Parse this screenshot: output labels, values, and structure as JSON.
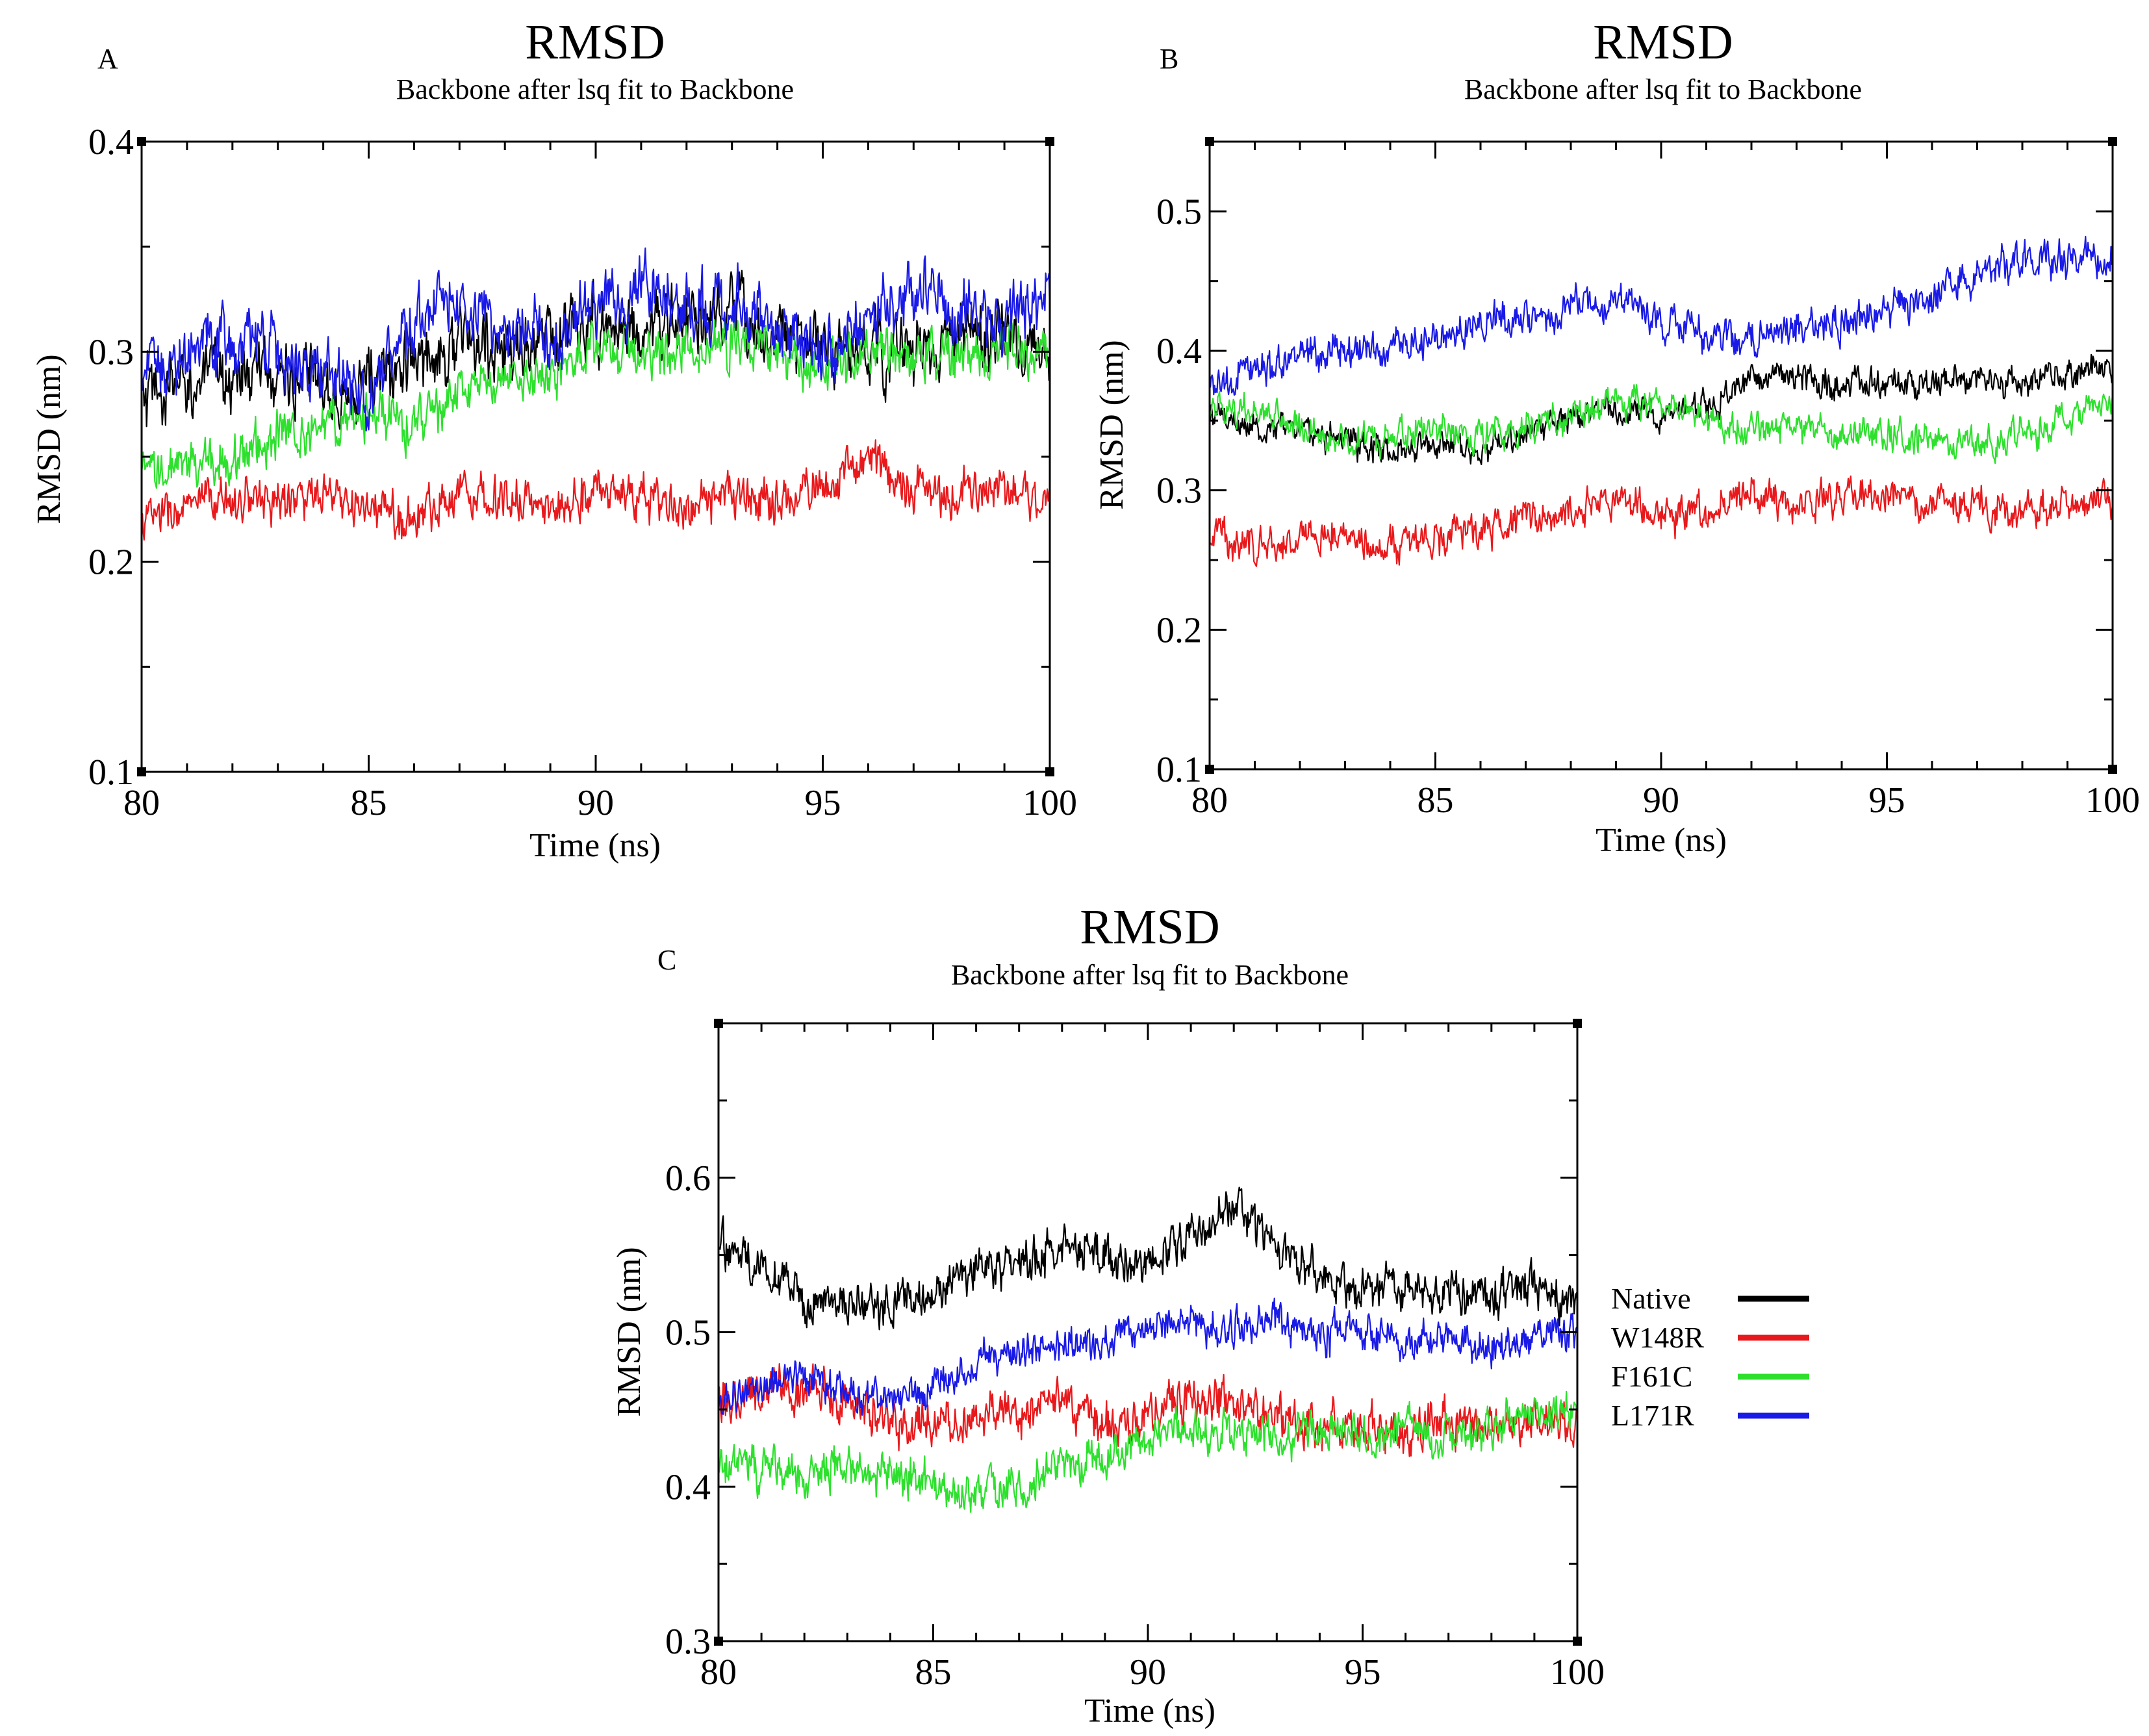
{
  "figure_kind": "GROMACS backbone RMSD plots (xmgrace style), three panels",
  "legend": [
    {
      "key": "native",
      "label": "Native",
      "color": "#000000"
    },
    {
      "key": "w148r",
      "label": "W148R",
      "color": "#e8191c"
    },
    {
      "key": "f161c",
      "label": "F161C",
      "color": "#2ee02e"
    },
    {
      "key": "l171r",
      "label": "L171R",
      "color": "#1a1ae6"
    }
  ],
  "chart_data": [
    {
      "panel": "A",
      "type": "line",
      "title": "RMSD",
      "subtitle": "Backbone after lsq fit to Backbone",
      "xlabel": "Time (ns)",
      "ylabel": "RMSD (nm)",
      "xlim": [
        80,
        100
      ],
      "ylim": [
        0.1,
        0.4
      ],
      "xticks": [
        80,
        85,
        90,
        95,
        100
      ],
      "yticks": [
        0.1,
        0.2,
        0.3,
        0.4
      ],
      "xtick_labels": [
        "80",
        "85",
        "90",
        "95",
        "100"
      ],
      "ytick_labels": [
        "0.1",
        "0.2",
        "0.3",
        "0.4"
      ],
      "x": [
        80,
        81,
        82,
        83,
        84,
        85,
        86,
        87,
        88,
        89,
        90,
        91,
        92,
        93,
        94,
        95,
        96,
        97,
        98,
        99,
        100
      ],
      "series": [
        {
          "name": "Native",
          "color": "#000000",
          "noise": 0.014,
          "values": [
            0.275,
            0.285,
            0.29,
            0.29,
            0.285,
            0.285,
            0.295,
            0.305,
            0.3,
            0.305,
            0.315,
            0.31,
            0.315,
            0.315,
            0.31,
            0.3,
            0.3,
            0.3,
            0.305,
            0.31,
            0.29
          ]
        },
        {
          "name": "W148R",
          "color": "#e8191c",
          "noise": 0.009,
          "values": [
            0.22,
            0.225,
            0.23,
            0.23,
            0.23,
            0.225,
            0.22,
            0.235,
            0.23,
            0.225,
            0.235,
            0.23,
            0.225,
            0.23,
            0.23,
            0.235,
            0.25,
            0.235,
            0.23,
            0.235,
            0.23
          ]
        },
        {
          "name": "F161C",
          "color": "#2ee02e",
          "noise": 0.01,
          "values": [
            0.24,
            0.245,
            0.25,
            0.26,
            0.265,
            0.27,
            0.265,
            0.28,
            0.285,
            0.29,
            0.3,
            0.3,
            0.3,
            0.305,
            0.3,
            0.295,
            0.3,
            0.3,
            0.295,
            0.3,
            0.3
          ]
        },
        {
          "name": "L171R",
          "color": "#1a1ae6",
          "noise": 0.013,
          "values": [
            0.29,
            0.3,
            0.305,
            0.3,
            0.29,
            0.28,
            0.315,
            0.325,
            0.31,
            0.31,
            0.32,
            0.33,
            0.325,
            0.32,
            0.315,
            0.3,
            0.32,
            0.33,
            0.32,
            0.315,
            0.33
          ]
        }
      ]
    },
    {
      "panel": "B",
      "type": "line",
      "title": "RMSD",
      "subtitle": "Backbone after lsq fit to Backbone",
      "xlabel": "Time (ns)",
      "ylabel": "RMSD (nm)",
      "xlim": [
        80,
        100
      ],
      "ylim": [
        0.1,
        0.55
      ],
      "xticks": [
        80,
        85,
        90,
        95,
        100
      ],
      "yticks": [
        0.1,
        0.2,
        0.3,
        0.4,
        0.5
      ],
      "xtick_labels": [
        "80",
        "85",
        "90",
        "95",
        "100"
      ],
      "ytick_labels": [
        "0.1",
        "0.2",
        "0.3",
        "0.4",
        "0.5"
      ],
      "x": [
        80,
        81,
        82,
        83,
        84,
        85,
        86,
        87,
        88,
        89,
        90,
        91,
        92,
        93,
        94,
        95,
        96,
        97,
        98,
        99,
        100
      ],
      "series": [
        {
          "name": "Native",
          "color": "#000000",
          "noise": 0.009,
          "values": [
            0.355,
            0.345,
            0.345,
            0.335,
            0.33,
            0.335,
            0.33,
            0.34,
            0.355,
            0.36,
            0.355,
            0.36,
            0.38,
            0.385,
            0.375,
            0.375,
            0.38,
            0.38,
            0.38,
            0.385,
            0.39
          ]
        },
        {
          "name": "W148R",
          "color": "#e8191c",
          "noise": 0.011,
          "values": [
            0.27,
            0.26,
            0.265,
            0.27,
            0.26,
            0.265,
            0.27,
            0.28,
            0.285,
            0.295,
            0.285,
            0.285,
            0.3,
            0.29,
            0.295,
            0.295,
            0.29,
            0.29,
            0.285,
            0.29,
            0.295
          ]
        },
        {
          "name": "F161C",
          "color": "#2ee02e",
          "noise": 0.01,
          "values": [
            0.36,
            0.355,
            0.345,
            0.335,
            0.34,
            0.345,
            0.34,
            0.345,
            0.355,
            0.365,
            0.36,
            0.35,
            0.345,
            0.345,
            0.34,
            0.34,
            0.335,
            0.335,
            0.34,
            0.35,
            0.365
          ]
        },
        {
          "name": "L171R",
          "color": "#1a1ae6",
          "noise": 0.011,
          "values": [
            0.375,
            0.385,
            0.395,
            0.4,
            0.4,
            0.41,
            0.42,
            0.425,
            0.43,
            0.44,
            0.42,
            0.41,
            0.41,
            0.415,
            0.42,
            0.43,
            0.44,
            0.455,
            0.465,
            0.465,
            0.47
          ]
        }
      ]
    },
    {
      "panel": "C",
      "type": "line",
      "title": "RMSD",
      "subtitle": "Backbone after lsq fit to Backbone",
      "xlabel": "Time (ns)",
      "ylabel": "RMSD (nm)",
      "xlim": [
        80,
        100
      ],
      "ylim": [
        0.3,
        0.7
      ],
      "xticks": [
        80,
        85,
        90,
        95,
        100
      ],
      "yticks": [
        0.3,
        0.4,
        0.5,
        0.6
      ],
      "xtick_labels": [
        "80",
        "85",
        "90",
        "95",
        "100"
      ],
      "ytick_labels": [
        "0.3",
        "0.4",
        "0.5",
        "0.6"
      ],
      "x": [
        80,
        81,
        82,
        83,
        84,
        85,
        86,
        87,
        88,
        89,
        90,
        91,
        92,
        93,
        94,
        95,
        96,
        97,
        98,
        99,
        100
      ],
      "series": [
        {
          "name": "Native",
          "color": "#000000",
          "noise": 0.012,
          "values": [
            0.56,
            0.54,
            0.52,
            0.52,
            0.515,
            0.525,
            0.54,
            0.545,
            0.555,
            0.55,
            0.545,
            0.565,
            0.58,
            0.56,
            0.535,
            0.525,
            0.53,
            0.525,
            0.525,
            0.53,
            0.52
          ]
        },
        {
          "name": "W148R",
          "color": "#e8191c",
          "noise": 0.012,
          "values": [
            0.455,
            0.46,
            0.465,
            0.455,
            0.445,
            0.44,
            0.445,
            0.45,
            0.455,
            0.44,
            0.445,
            0.455,
            0.455,
            0.445,
            0.44,
            0.44,
            0.435,
            0.44,
            0.44,
            0.445,
            0.44
          ]
        },
        {
          "name": "F161C",
          "color": "#2ee02e",
          "noise": 0.011,
          "values": [
            0.415,
            0.41,
            0.41,
            0.415,
            0.41,
            0.4,
            0.395,
            0.4,
            0.415,
            0.42,
            0.43,
            0.44,
            0.435,
            0.43,
            0.435,
            0.43,
            0.435,
            0.43,
            0.44,
            0.45,
            0.45
          ]
        },
        {
          "name": "L171R",
          "color": "#1a1ae6",
          "noise": 0.01,
          "values": [
            0.455,
            0.465,
            0.47,
            0.46,
            0.455,
            0.465,
            0.48,
            0.49,
            0.49,
            0.495,
            0.505,
            0.505,
            0.5,
            0.51,
            0.5,
            0.5,
            0.495,
            0.495,
            0.49,
            0.495,
            0.5
          ]
        }
      ]
    }
  ]
}
